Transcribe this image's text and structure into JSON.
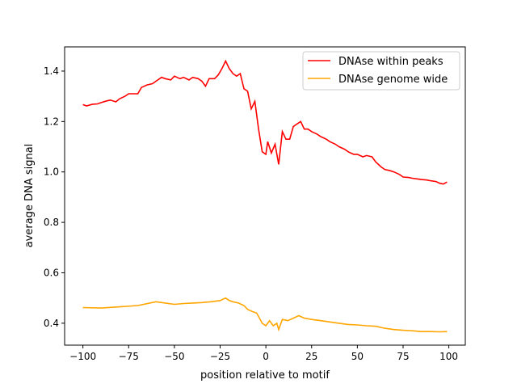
{
  "chart_data": {
    "type": "line",
    "title": "",
    "xlabel": "position relative to motif",
    "ylabel": "average DNA signal",
    "xlim": [
      -110,
      109
    ],
    "ylim": [
      0.313,
      1.496
    ],
    "xticks": [
      -100,
      -75,
      -50,
      -25,
      0,
      25,
      50,
      75,
      100
    ],
    "yticks": [
      0.4,
      0.6,
      0.8,
      1.0,
      1.2,
      1.4
    ],
    "grid": false,
    "legend": "top-right",
    "series": [
      {
        "name": "DNAse within peaks",
        "color": "#ff0000",
        "x": [
          -100,
          -98,
          -95,
          -92,
          -90,
          -87,
          -85,
          -82,
          -80,
          -77,
          -75,
          -70,
          -68,
          -65,
          -62,
          -60,
          -57,
          -55,
          -52,
          -50,
          -47,
          -45,
          -42,
          -40,
          -37,
          -35,
          -33,
          -31,
          -28,
          -26,
          -24,
          -22,
          -20,
          -18,
          -16,
          -14,
          -12,
          -10,
          -8,
          -6,
          -4,
          -2,
          0,
          1,
          3,
          5,
          7,
          9,
          11,
          13,
          15,
          17,
          19,
          21,
          23,
          25,
          28,
          30,
          33,
          35,
          38,
          40,
          43,
          45,
          48,
          50,
          53,
          55,
          58,
          60,
          63,
          65,
          68,
          70,
          73,
          75,
          78,
          80,
          83,
          85,
          88,
          90,
          93,
          95,
          97,
          99
        ],
        "y": [
          1.267,
          1.262,
          1.268,
          1.27,
          1.275,
          1.282,
          1.285,
          1.278,
          1.29,
          1.3,
          1.31,
          1.31,
          1.335,
          1.345,
          1.35,
          1.36,
          1.375,
          1.37,
          1.365,
          1.38,
          1.37,
          1.375,
          1.365,
          1.375,
          1.37,
          1.36,
          1.34,
          1.37,
          1.37,
          1.385,
          1.41,
          1.44,
          1.41,
          1.39,
          1.38,
          1.39,
          1.33,
          1.32,
          1.25,
          1.28,
          1.17,
          1.08,
          1.07,
          1.12,
          1.075,
          1.11,
          1.03,
          1.16,
          1.13,
          1.13,
          1.18,
          1.19,
          1.2,
          1.17,
          1.17,
          1.16,
          1.15,
          1.14,
          1.13,
          1.12,
          1.11,
          1.1,
          1.09,
          1.08,
          1.07,
          1.07,
          1.06,
          1.065,
          1.06,
          1.04,
          1.02,
          1.01,
          1.005,
          1.0,
          0.99,
          0.98,
          0.978,
          0.975,
          0.972,
          0.97,
          0.968,
          0.965,
          0.962,
          0.955,
          0.952,
          0.96
        ]
      },
      {
        "name": "DNAse genome wide",
        "color": "#ffa500",
        "x": [
          -100,
          -90,
          -80,
          -70,
          -60,
          -55,
          -50,
          -45,
          -40,
          -35,
          -30,
          -25,
          -22,
          -20,
          -18,
          -15,
          -12,
          -10,
          -7,
          -5,
          -2,
          0,
          2,
          4,
          6,
          7,
          9,
          12,
          15,
          18,
          21,
          25,
          30,
          35,
          40,
          45,
          50,
          55,
          60,
          65,
          70,
          75,
          80,
          85,
          90,
          95,
          99
        ],
        "y": [
          0.462,
          0.46,
          0.465,
          0.47,
          0.485,
          0.48,
          0.475,
          0.478,
          0.48,
          0.482,
          0.485,
          0.49,
          0.5,
          0.49,
          0.485,
          0.48,
          0.47,
          0.455,
          0.445,
          0.44,
          0.4,
          0.39,
          0.41,
          0.39,
          0.4,
          0.375,
          0.415,
          0.41,
          0.42,
          0.43,
          0.42,
          0.415,
          0.41,
          0.405,
          0.4,
          0.395,
          0.393,
          0.39,
          0.388,
          0.38,
          0.375,
          0.372,
          0.37,
          0.367,
          0.367,
          0.366,
          0.367
        ]
      }
    ]
  }
}
